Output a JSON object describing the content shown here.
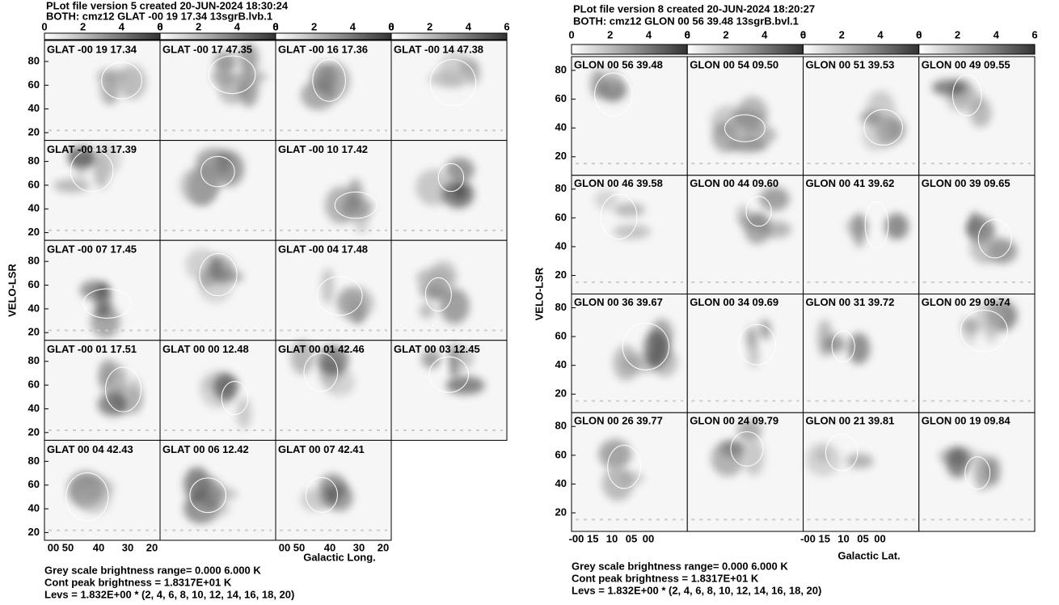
{
  "left": {
    "header": [
      "PLot file version 5  created 20-JUN-2024 18:30:24",
      "BOTH: cmz12  GLAT -00 19 17.34  13sgrB.lvb.1"
    ],
    "colorbar_ticks": [
      "0",
      "2",
      "4",
      "6"
    ],
    "y_label": "VELO-LSR",
    "y_ticks": [
      "80",
      "60",
      "40",
      "20"
    ],
    "x_ticks": [
      "00 50",
      "40",
      "30",
      "20"
    ],
    "x_label": "Galactic Long.",
    "panels": [
      "GLAT -00 19 17.34",
      "GLAT -00 17 47.35",
      "GLAT -00 16 17.36",
      "GLAT -00 14 47.38",
      "GLAT -00 13 17.39",
      null,
      "GLAT -00 10 17.42",
      null,
      "GLAT -00 07 17.45",
      null,
      "GLAT -00 04 17.48",
      null,
      "GLAT -00 01 17.51",
      "GLAT 00 00 12.48",
      "GLAT 00 01 42.46",
      "GLAT 00 03 12.45",
      "GLAT 00 04 42.43",
      "GLAT 00 06 12.42",
      "GLAT 00 07 42.41"
    ],
    "footer": [
      "Grey scale brightness range= 0.000 6.000 K",
      "Cont peak brightness = 1.8317E+01 K",
      "Levs = 1.832E+00 * (2, 4, 6, 8, 10, 12, 14, 16, 18, 20)"
    ]
  },
  "right": {
    "header": [
      "PLot file version 8  created 20-JUN-2024 18:20:27",
      "BOTH: cmz12  GLON 00 56 39.48  13sgrB.bvl.1"
    ],
    "colorbar_ticks": [
      "0",
      "2",
      "4",
      "6"
    ],
    "y_label": "VELO-LSR",
    "y_ticks": [
      "80",
      "60",
      "40",
      "20"
    ],
    "x_ticks": [
      "-00 15",
      "10",
      "05",
      "00"
    ],
    "x_label": "Galactic Lat.",
    "panels": [
      "GLON 00 56 39.48",
      "GLON 00 54 09.50",
      "GLON 00 51 39.53",
      "GLON 00 49 09.55",
      "GLON 00 46 39.58",
      "GLON 00 44 09.60",
      "GLON 00 41 39.62",
      "GLON 00 39 09.65",
      "GLON 00 36 39.67",
      "GLON 00 34 09.69",
      "GLON 00 31 39.72",
      "GLON 00 29 09.74",
      "GLON 00 26 39.77",
      "GLON 00 24 09.79",
      "GLON 00 21 39.81",
      "GLON 00 19 09.84"
    ],
    "footer": [
      "Grey scale brightness range= 0.000 6.000 K",
      "Cont peak brightness = 1.8317E+01 K",
      "Levs = 1.832E+00 * (2, 4, 6, 8, 10, 12, 14, 16, 18, 20)"
    ]
  }
}
